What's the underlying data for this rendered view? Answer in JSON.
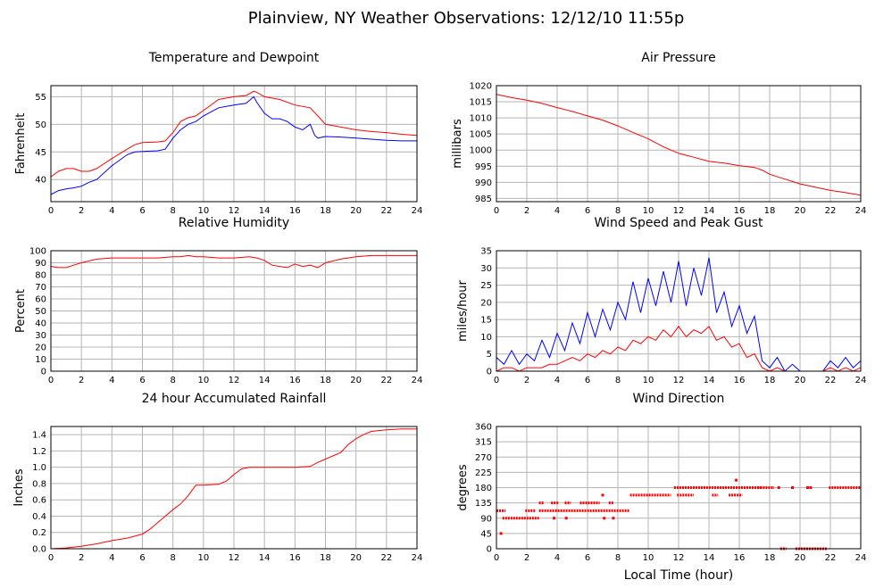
{
  "title": "Plainview, NY Weather Observations: 12/12/10 11:55p",
  "x_axis_label": "Local Time (hour)",
  "colors": {
    "red": "#ff0000",
    "blue": "#0000ff",
    "grid": "#b4b4b4",
    "frame": "#000000"
  },
  "chart_data": [
    {
      "id": "temp",
      "type": "line",
      "title": "Temperature and Dewpoint",
      "ylabel": "Fahrenheit",
      "xlim": [
        0,
        24
      ],
      "ylim": [
        36,
        57
      ],
      "xticks": [
        0,
        2,
        4,
        6,
        8,
        10,
        12,
        14,
        16,
        18,
        20,
        22,
        24
      ],
      "yticks": [
        40,
        45,
        50,
        55
      ],
      "series": [
        {
          "color": "#ff0000",
          "x": [
            0,
            0.5,
            1,
            1.5,
            2,
            2.5,
            3,
            4,
            5,
            5.5,
            6,
            7,
            7.5,
            8,
            8.5,
            9,
            9.5,
            10,
            11,
            12,
            12.8,
            13.3,
            13.5,
            14,
            15,
            16,
            17,
            17.5,
            18,
            19,
            20,
            21,
            22,
            23,
            24
          ],
          "y": [
            40.5,
            41.5,
            42,
            42,
            41.5,
            41.5,
            42,
            43.8,
            45.5,
            46.3,
            46.7,
            46.8,
            47,
            48.5,
            50.5,
            51.2,
            51.5,
            52.5,
            54.5,
            55,
            55.2,
            56,
            55.8,
            55,
            54.5,
            53.5,
            53,
            51.5,
            50,
            49.5,
            49,
            48.7,
            48.5,
            48.2,
            48
          ]
        },
        {
          "color": "#0000ff",
          "x": [
            0,
            0.5,
            1,
            1.5,
            2,
            2.5,
            3,
            4,
            5,
            5.5,
            6,
            7,
            7.5,
            8,
            8.5,
            9,
            9.5,
            10,
            11,
            12,
            12.8,
            13.3,
            13.5,
            14,
            14.5,
            15,
            15.5,
            16,
            16.5,
            17,
            17.3,
            17.5,
            18,
            19,
            20,
            21,
            22,
            23,
            24
          ],
          "y": [
            37.3,
            38,
            38.3,
            38.5,
            38.8,
            39.5,
            40,
            42.5,
            44.5,
            45,
            45.1,
            45.2,
            45.5,
            47.5,
            49,
            50,
            50.5,
            51.5,
            53,
            53.5,
            53.8,
            55,
            54,
            52,
            51,
            51,
            50.5,
            49.5,
            49,
            50,
            48,
            47.5,
            47.8,
            47.7,
            47.5,
            47.3,
            47.1,
            47,
            47
          ]
        }
      ]
    },
    {
      "id": "pressure",
      "type": "line",
      "title": "Air Pressure",
      "ylabel": "millibars",
      "xlim": [
        0,
        24
      ],
      "ylim": [
        984,
        1020
      ],
      "xticks": [
        0,
        2,
        4,
        6,
        8,
        10,
        12,
        14,
        16,
        18,
        20,
        22,
        24
      ],
      "yticks": [
        985,
        990,
        995,
        1000,
        1005,
        1010,
        1015,
        1020
      ],
      "series": [
        {
          "color": "#ff0000",
          "x": [
            0,
            1,
            2,
            3,
            4,
            5,
            6,
            7,
            8,
            9,
            10,
            11,
            12,
            13,
            14,
            15,
            16,
            17,
            17.5,
            18,
            19,
            20,
            21,
            22,
            23,
            24
          ],
          "y": [
            1017.3,
            1016.3,
            1015.5,
            1014.5,
            1013.2,
            1012,
            1010.6,
            1009.3,
            1007.5,
            1005.5,
            1003.5,
            1001,
            999,
            997.8,
            996.5,
            996,
            995.2,
            994.6,
            993.8,
            992.5,
            991,
            989.5,
            988.5,
            987.5,
            986.8,
            986
          ]
        }
      ]
    },
    {
      "id": "humidity",
      "type": "line",
      "title": "Relative Humidity",
      "ylabel": "Percent",
      "xlim": [
        0,
        24
      ],
      "ylim": [
        0,
        100
      ],
      "xticks": [
        0,
        2,
        4,
        6,
        8,
        10,
        12,
        14,
        16,
        18,
        20,
        22,
        24
      ],
      "yticks": [
        0,
        10,
        20,
        30,
        40,
        50,
        60,
        70,
        80,
        90,
        100
      ],
      "series": [
        {
          "color": "#ff0000",
          "x": [
            0,
            0.5,
            1,
            1.5,
            2,
            3,
            4,
            5,
            6,
            7,
            8,
            8.5,
            9,
            9.5,
            10,
            11,
            12,
            13,
            13.5,
            14,
            14.5,
            15,
            15.5,
            16,
            16.5,
            17,
            17.5,
            18,
            19,
            20,
            21,
            22,
            23,
            24
          ],
          "y": [
            87,
            86,
            86,
            88,
            90,
            93,
            94,
            94,
            94,
            94,
            95,
            95,
            96,
            95,
            95,
            94,
            94,
            95,
            94,
            92,
            88,
            87,
            86,
            89,
            87,
            88,
            86,
            90,
            93,
            95,
            96,
            96,
            96,
            96
          ]
        }
      ]
    },
    {
      "id": "wind",
      "type": "line",
      "title": "Wind Speed and Peak Gust",
      "ylabel": "miles/hour",
      "xlim": [
        0,
        24
      ],
      "ylim": [
        0,
        35
      ],
      "xticks": [
        0,
        2,
        4,
        6,
        8,
        10,
        12,
        14,
        16,
        18,
        20,
        22,
        24
      ],
      "yticks": [
        0,
        5,
        10,
        15,
        20,
        25,
        30,
        35
      ],
      "series": [
        {
          "color": "#0000ff",
          "x": [
            0,
            0.5,
            1,
            1.5,
            2,
            2.5,
            3,
            3.5,
            4,
            4.5,
            5,
            5.5,
            6,
            6.5,
            7,
            7.5,
            8,
            8.5,
            9,
            9.5,
            10,
            10.5,
            11,
            11.5,
            12,
            12.5,
            13,
            13.5,
            14,
            14.5,
            15,
            15.5,
            16,
            16.5,
            17,
            17.5,
            18,
            18.5,
            19,
            19.5,
            20,
            20.5,
            21,
            21.5,
            22,
            22.5,
            23,
            23.5,
            24
          ],
          "y": [
            4,
            2,
            6,
            2,
            5,
            3,
            9,
            4,
            11,
            6,
            14,
            8,
            17,
            10,
            18,
            12,
            20,
            15,
            26,
            17,
            27,
            19,
            29,
            20,
            32,
            19,
            30,
            22,
            33,
            17,
            23,
            13,
            19,
            11,
            16,
            3,
            1,
            4,
            0,
            2,
            0,
            0,
            0,
            0,
            3,
            1,
            4,
            1,
            3
          ]
        },
        {
          "color": "#ff0000",
          "x": [
            0,
            0.5,
            1,
            1.5,
            2,
            2.5,
            3,
            3.5,
            4,
            4.5,
            5,
            5.5,
            6,
            6.5,
            7,
            7.5,
            8,
            8.5,
            9,
            9.5,
            10,
            10.5,
            11,
            11.5,
            12,
            12.5,
            13,
            13.5,
            14,
            14.5,
            15,
            15.5,
            16,
            16.5,
            17,
            17.5,
            18,
            18.5,
            19,
            19.5,
            20,
            20.5,
            21,
            21.5,
            22,
            22.5,
            23,
            23.5,
            24
          ],
          "y": [
            0,
            1,
            1,
            0,
            1,
            1,
            1,
            2,
            2,
            3,
            4,
            3,
            5,
            4,
            6,
            5,
            7,
            6,
            9,
            8,
            10,
            9,
            12,
            10,
            13,
            10,
            12,
            11,
            13,
            9,
            10,
            7,
            8,
            4,
            5,
            1,
            0,
            1,
            0,
            0,
            0,
            0,
            0,
            0,
            1,
            0,
            1,
            0,
            1
          ]
        }
      ]
    },
    {
      "id": "rain",
      "type": "line",
      "title": "24 hour Accumulated Rainfall",
      "ylabel": "Inches",
      "xlim": [
        0,
        24
      ],
      "ylim": [
        0,
        1.5
      ],
      "xticks": [
        0,
        2,
        4,
        6,
        8,
        10,
        12,
        14,
        16,
        18,
        20,
        22,
        24
      ],
      "yticks": [
        0.0,
        0.2,
        0.4,
        0.6,
        0.8,
        1.0,
        1.2,
        1.4
      ],
      "ytick_labels": [
        "0.0",
        "0.2",
        "0.4",
        "0.6",
        "0.8",
        "1.0",
        "1.2",
        "1.4"
      ],
      "series": [
        {
          "color": "#ff0000",
          "x": [
            0,
            1,
            2,
            3,
            4,
            5,
            6,
            6.5,
            7,
            7.5,
            8,
            8.5,
            9,
            9.5,
            10,
            11,
            11.5,
            12,
            12.5,
            13,
            14,
            15,
            16,
            17,
            17.5,
            18,
            19,
            19.5,
            20,
            20.5,
            21,
            22,
            23,
            24
          ],
          "y": [
            0,
            0.01,
            0.03,
            0.06,
            0.1,
            0.13,
            0.18,
            0.24,
            0.32,
            0.4,
            0.48,
            0.55,
            0.65,
            0.78,
            0.78,
            0.79,
            0.83,
            0.91,
            0.98,
            1.0,
            1.0,
            1.0,
            1.0,
            1.01,
            1.06,
            1.1,
            1.18,
            1.28,
            1.35,
            1.4,
            1.44,
            1.46,
            1.47,
            1.47
          ]
        }
      ]
    },
    {
      "id": "direction",
      "type": "scatter",
      "title": "Wind Direction",
      "ylabel": "degrees",
      "xlim": [
        0,
        24
      ],
      "ylim": [
        0,
        360
      ],
      "xticks": [
        0,
        2,
        4,
        6,
        8,
        10,
        12,
        14,
        16,
        18,
        20,
        22,
        24
      ],
      "yticks": [
        0,
        45,
        90,
        135,
        180,
        225,
        270,
        315,
        360
      ],
      "segments": [
        {
          "x0": 0.0,
          "x1": 0.6,
          "y": 112
        },
        {
          "x0": 0.4,
          "x1": 2.8,
          "y": 90
        },
        {
          "x0": 1.9,
          "x1": 2.6,
          "y": 112
        },
        {
          "x0": 2.8,
          "x1": 8.8,
          "y": 112
        },
        {
          "x0": 2.8,
          "x1": 3.1,
          "y": 135
        },
        {
          "x0": 3.6,
          "x1": 4.1,
          "y": 135
        },
        {
          "x0": 4.5,
          "x1": 4.9,
          "y": 135
        },
        {
          "x0": 5.5,
          "x1": 6.8,
          "y": 135
        },
        {
          "x0": 7.4,
          "x1": 7.7,
          "y": 135
        },
        {
          "x0": 8.8,
          "x1": 11.5,
          "y": 158
        },
        {
          "x0": 11.7,
          "x1": 17.5,
          "y": 180
        },
        {
          "x0": 11.9,
          "x1": 13.0,
          "y": 158
        },
        {
          "x0": 14.2,
          "x1": 14.6,
          "y": 158
        },
        {
          "x0": 15.3,
          "x1": 16.2,
          "y": 158
        },
        {
          "x0": 17.2,
          "x1": 18.3,
          "y": 180
        },
        {
          "x0": 18.7,
          "x1": 19.1,
          "y": 0
        },
        {
          "x0": 19.7,
          "x1": 21.8,
          "y": 0
        },
        {
          "x0": 21.9,
          "x1": 24.0,
          "y": 180
        }
      ],
      "points": [
        {
          "x": 0.3,
          "y": 45
        },
        {
          "x": 3.8,
          "y": 90
        },
        {
          "x": 4.6,
          "y": 90
        },
        {
          "x": 7.0,
          "y": 158
        },
        {
          "x": 7.1,
          "y": 90
        },
        {
          "x": 7.7,
          "y": 90
        },
        {
          "x": 15.8,
          "y": 202
        },
        {
          "x": 18.6,
          "y": 180
        },
        {
          "x": 19.5,
          "y": 180
        },
        {
          "x": 20.5,
          "y": 180
        },
        {
          "x": 20.7,
          "y": 180
        }
      ]
    }
  ]
}
